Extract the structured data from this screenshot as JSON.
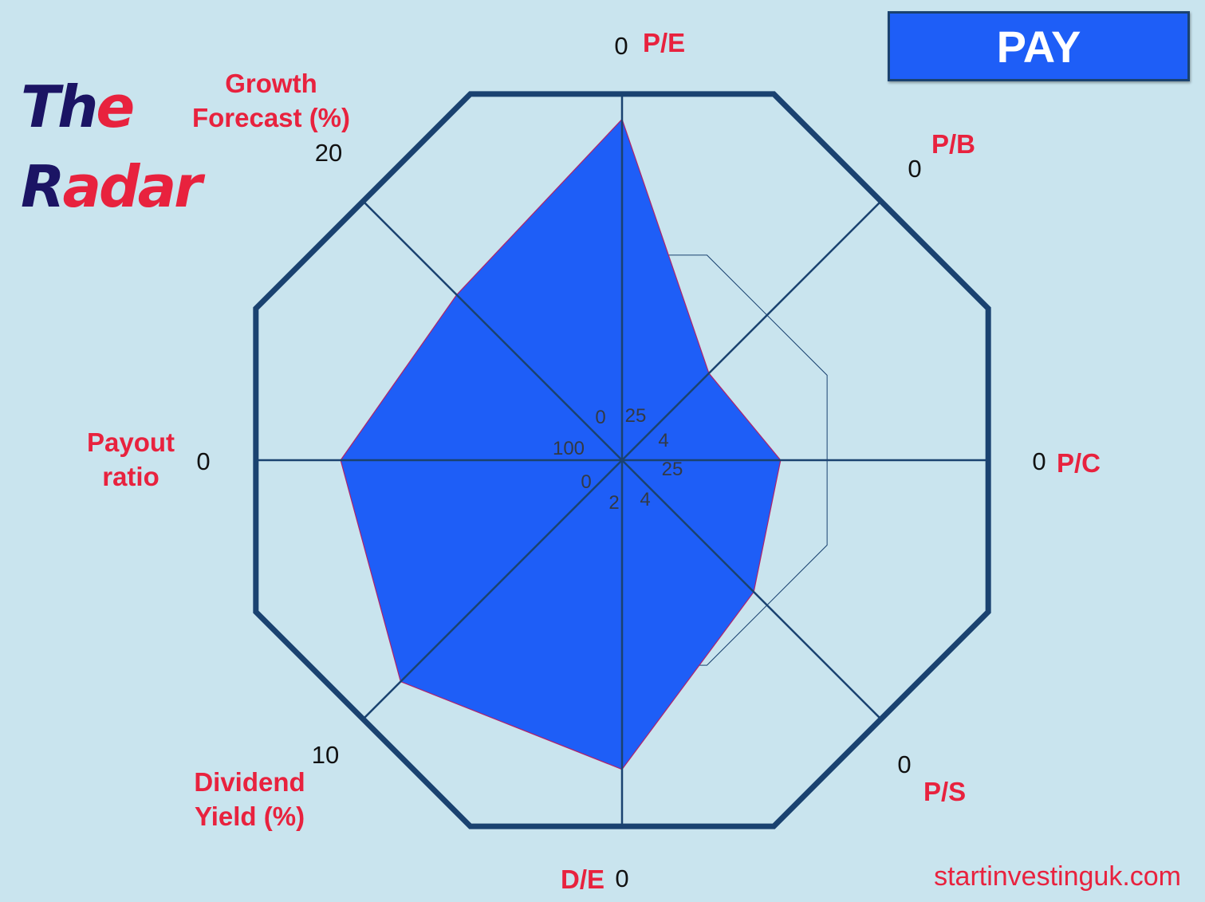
{
  "logo": {
    "line1_a": "Th",
    "line1_b": "e",
    "line2_a": "R",
    "line2_b": "adar"
  },
  "ticker": "PAY",
  "website": "startinvestinguk.com",
  "colors": {
    "background": "#c9e4ee",
    "frame": "#1a4270",
    "fill": "#1e5ef7",
    "label": "#e8223e",
    "logo_dark": "#1b1464"
  },
  "chart_data": {
    "type": "radar",
    "title": "",
    "axes": [
      {
        "name": "P/E",
        "label_lines": [
          "P/E"
        ],
        "outer_tick": "0",
        "inner_tick": "25"
      },
      {
        "name": "P/B",
        "label_lines": [
          "P/B"
        ],
        "outer_tick": "0",
        "inner_tick": "4"
      },
      {
        "name": "P/C",
        "label_lines": [
          "P/C"
        ],
        "outer_tick": "0",
        "inner_tick": "25"
      },
      {
        "name": "P/S",
        "label_lines": [
          "P/S"
        ],
        "outer_tick": "0",
        "inner_tick": "4"
      },
      {
        "name": "D/E",
        "label_lines": [
          "D/E"
        ],
        "outer_tick": "0",
        "inner_tick": "2"
      },
      {
        "name": "Dividend Yield (%)",
        "label_lines": [
          "Dividend",
          "Yield (%)"
        ],
        "outer_tick": "10",
        "inner_tick": "0"
      },
      {
        "name": "Payout ratio",
        "label_lines": [
          "Payout",
          "ratio"
        ],
        "outer_tick": "0",
        "inner_tick": "100"
      },
      {
        "name": "Growth Forecast (%)",
        "label_lines": [
          "Growth",
          "Forecast (%)"
        ],
        "outer_tick": "20",
        "inner_tick": "0"
      }
    ],
    "series": [
      {
        "values_fraction_of_max": [
          0.86,
          0.31,
          0.4,
          0.47,
          0.78,
          0.79,
          0.71,
          0.59
        ]
      }
    ],
    "reference_ring_fraction": 0.56,
    "grid": true
  }
}
